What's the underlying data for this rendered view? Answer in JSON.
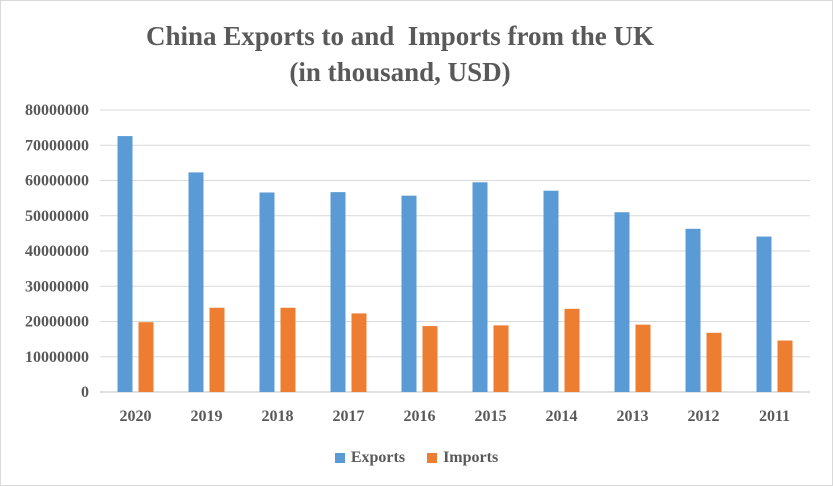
{
  "chart_data": {
    "type": "bar",
    "title_line1": "China Exports to and  Imports from the UK",
    "title_line2": "(in thousand, USD)",
    "categories": [
      "2020",
      "2019",
      "2018",
      "2017",
      "2016",
      "2015",
      "2014",
      "2013",
      "2012",
      "2011"
    ],
    "series": [
      {
        "name": "Exports",
        "color": "#5b9bd5",
        "values": [
          72600000,
          62300000,
          56600000,
          56700000,
          55700000,
          59500000,
          57100000,
          51000000,
          46300000,
          44100000
        ]
      },
      {
        "name": "Imports",
        "color": "#ed7d31",
        "values": [
          19800000,
          23900000,
          23900000,
          22300000,
          18700000,
          18900000,
          23600000,
          19100000,
          16800000,
          14600000
        ]
      }
    ],
    "ylim": [
      0,
      80000000
    ],
    "yticks": [
      "0",
      "10000000",
      "20000000",
      "30000000",
      "40000000",
      "50000000",
      "60000000",
      "70000000",
      "80000000"
    ],
    "grid": true,
    "legend_position": "bottom"
  }
}
